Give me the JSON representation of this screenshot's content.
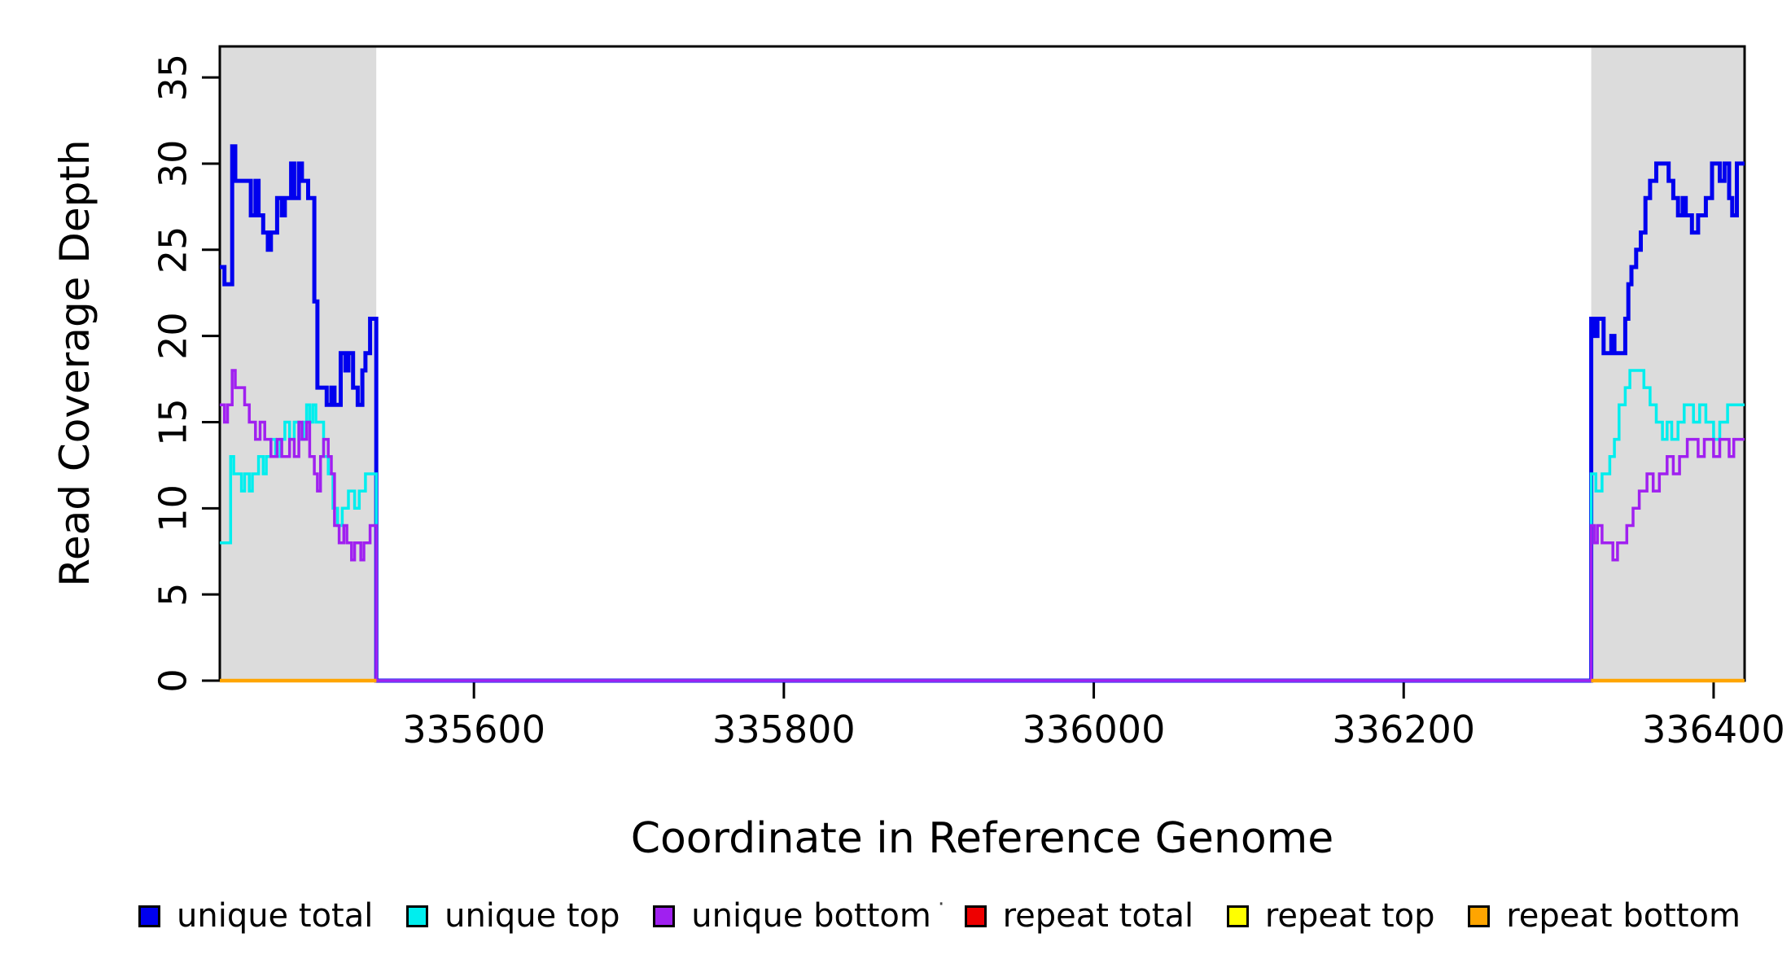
{
  "figure": {
    "background": "#ffffff",
    "plot_bg": "#ffffff",
    "box_color": "#000000"
  },
  "chart_data": {
    "type": "line",
    "step": "after",
    "title": "",
    "xlabel": "Coordinate in Reference Genome",
    "ylabel": "Read Coverage Depth",
    "xlim": [
      335436,
      336420
    ],
    "ylim": [
      0,
      36.8
    ],
    "xticks": [
      335600,
      335800,
      336000,
      336200,
      336400
    ],
    "yticks": [
      0,
      5,
      10,
      15,
      20,
      25,
      30,
      35
    ],
    "grid": false,
    "legend_position": "bottom",
    "shaded_regions": [
      {
        "name": "repeat-region-left",
        "x0": 335436,
        "x1": 335537,
        "color": "#DCDCDC"
      },
      {
        "name": "repeat-region-right",
        "x0": 336321,
        "x1": 336420,
        "color": "#DCDCDC"
      }
    ],
    "series": [
      {
        "name": "unique total",
        "color": "#0000EE",
        "width": 5,
        "segments": [
          [
            [
              335436,
              24
            ],
            [
              335439,
              23
            ],
            [
              335444,
              31
            ],
            [
              335446,
              29
            ],
            [
              335456,
              27
            ],
            [
              335459,
              29
            ],
            [
              335461,
              27
            ],
            [
              335464,
              26
            ],
            [
              335467,
              25
            ],
            [
              335469,
              26
            ],
            [
              335473,
              28
            ],
            [
              335476,
              27
            ],
            [
              335478,
              28
            ],
            [
              335482,
              30
            ],
            [
              335484,
              28
            ],
            [
              335487,
              30
            ],
            [
              335489,
              29
            ],
            [
              335493,
              28
            ],
            [
              335497,
              22
            ],
            [
              335499,
              17
            ],
            [
              335505,
              16
            ],
            [
              335508,
              17
            ],
            [
              335510,
              16
            ],
            [
              335514,
              19
            ],
            [
              335517,
              18
            ],
            [
              335519,
              19
            ],
            [
              335522,
              17
            ],
            [
              335525,
              16
            ],
            [
              335528,
              18
            ],
            [
              335530,
              19
            ],
            [
              335533,
              21
            ],
            [
              335537,
              0
            ],
            [
              336321,
              21
            ],
            [
              336323,
              20
            ],
            [
              336325,
              21
            ],
            [
              336329,
              19
            ],
            [
              336334,
              20
            ],
            [
              336336,
              19
            ],
            [
              336343,
              21
            ],
            [
              336345,
              23
            ],
            [
              336347,
              24
            ],
            [
              336350,
              25
            ],
            [
              336353,
              26
            ],
            [
              336356,
              28
            ],
            [
              336359,
              29
            ],
            [
              336363,
              30
            ],
            [
              336371,
              29
            ],
            [
              336374,
              28
            ],
            [
              336377,
              27
            ],
            [
              336380,
              28
            ],
            [
              336382,
              27
            ],
            [
              336386,
              26
            ],
            [
              336390,
              27
            ],
            [
              336395,
              28
            ],
            [
              336399,
              30
            ],
            [
              336404,
              29
            ],
            [
              336407,
              30
            ],
            [
              336410,
              28
            ],
            [
              336412,
              27
            ],
            [
              336415,
              30
            ],
            [
              336420,
              30
            ]
          ]
        ]
      },
      {
        "name": "unique top",
        "color": "#00EEEE",
        "width": 3.5,
        "segments": [
          [
            [
              335436,
              8
            ],
            [
              335443,
              13
            ],
            [
              335445,
              12
            ],
            [
              335450,
              11
            ],
            [
              335452,
              12
            ],
            [
              335455,
              11
            ],
            [
              335457,
              12
            ],
            [
              335461,
              13
            ],
            [
              335464,
              12
            ],
            [
              335466,
              13
            ],
            [
              335469,
              14
            ],
            [
              335472,
              13
            ],
            [
              335475,
              14
            ],
            [
              335478,
              15
            ],
            [
              335481,
              14
            ],
            [
              335484,
              15
            ],
            [
              335487,
              14
            ],
            [
              335490,
              15
            ],
            [
              335492,
              16
            ],
            [
              335494,
              15
            ],
            [
              335496,
              16
            ],
            [
              335498,
              15
            ],
            [
              335503,
              13
            ],
            [
              335506,
              12
            ],
            [
              335509,
              10
            ],
            [
              335512,
              9
            ],
            [
              335515,
              10
            ],
            [
              335519,
              11
            ],
            [
              335523,
              10
            ],
            [
              335526,
              11
            ],
            [
              335530,
              12
            ],
            [
              335537,
              0
            ],
            [
              336321,
              12
            ],
            [
              336324,
              11
            ],
            [
              336328,
              12
            ],
            [
              336333,
              13
            ],
            [
              336336,
              14
            ],
            [
              336339,
              16
            ],
            [
              336343,
              17
            ],
            [
              336346,
              18
            ],
            [
              336355,
              17
            ],
            [
              336359,
              16
            ],
            [
              336363,
              15
            ],
            [
              336367,
              14
            ],
            [
              336370,
              15
            ],
            [
              336373,
              14
            ],
            [
              336377,
              15
            ],
            [
              336381,
              16
            ],
            [
              336387,
              15
            ],
            [
              336391,
              16
            ],
            [
              336395,
              15
            ],
            [
              336400,
              14
            ],
            [
              336404,
              15
            ],
            [
              336409,
              16
            ],
            [
              336420,
              16
            ]
          ]
        ]
      },
      {
        "name": "unique bottom",
        "color": "#A020F0",
        "width": 3.5,
        "segments": [
          [
            [
              335436,
              16
            ],
            [
              335439,
              15
            ],
            [
              335441,
              16
            ],
            [
              335444,
              18
            ],
            [
              335446,
              17
            ],
            [
              335452,
              16
            ],
            [
              335455,
              15
            ],
            [
              335459,
              14
            ],
            [
              335462,
              15
            ],
            [
              335465,
              14
            ],
            [
              335469,
              13
            ],
            [
              335473,
              14
            ],
            [
              335476,
              13
            ],
            [
              335481,
              14
            ],
            [
              335484,
              13
            ],
            [
              335487,
              15
            ],
            [
              335489,
              14
            ],
            [
              335492,
              15
            ],
            [
              335494,
              13
            ],
            [
              335497,
              12
            ],
            [
              335499,
              11
            ],
            [
              335501,
              13
            ],
            [
              335503,
              14
            ],
            [
              335506,
              13
            ],
            [
              335508,
              12
            ],
            [
              335510,
              9
            ],
            [
              335513,
              8
            ],
            [
              335516,
              9
            ],
            [
              335518,
              8
            ],
            [
              335521,
              7
            ],
            [
              335523,
              8
            ],
            [
              335527,
              7
            ],
            [
              335529,
              8
            ],
            [
              335533,
              9
            ],
            [
              335537,
              0
            ],
            [
              336321,
              9
            ],
            [
              336323,
              8
            ],
            [
              336325,
              9
            ],
            [
              336328,
              8
            ],
            [
              336335,
              7
            ],
            [
              336338,
              8
            ],
            [
              336344,
              9
            ],
            [
              336348,
              10
            ],
            [
              336352,
              11
            ],
            [
              336357,
              12
            ],
            [
              336361,
              11
            ],
            [
              336365,
              12
            ],
            [
              336370,
              13
            ],
            [
              336374,
              12
            ],
            [
              336378,
              13
            ],
            [
              336383,
              14
            ],
            [
              336390,
              13
            ],
            [
              336394,
              14
            ],
            [
              336400,
              13
            ],
            [
              336404,
              14
            ],
            [
              336410,
              13
            ],
            [
              336413,
              14
            ],
            [
              336420,
              14
            ]
          ]
        ]
      },
      {
        "name": "repeat total",
        "color": "#EE0000",
        "width": 4,
        "segments": [
          [
            [
              335436,
              0
            ],
            [
              335537,
              0
            ]
          ],
          [
            [
              336321,
              0
            ],
            [
              336420,
              0
            ]
          ]
        ]
      },
      {
        "name": "repeat top",
        "color": "#FFFF00",
        "width": 4,
        "segments": [
          [
            [
              335436,
              0
            ],
            [
              335537,
              0
            ]
          ],
          [
            [
              336321,
              0
            ],
            [
              336420,
              0
            ]
          ]
        ]
      },
      {
        "name": "repeat bottom",
        "color": "#FFA500",
        "width": 4.5,
        "segments": [
          [
            [
              335436,
              0
            ],
            [
              335537,
              0
            ]
          ],
          [
            [
              336321,
              0
            ],
            [
              336420,
              0
            ]
          ]
        ]
      }
    ]
  },
  "legend": {
    "stray_mark": "·",
    "items": [
      {
        "label": "unique total",
        "color": "#0000EE"
      },
      {
        "label": "unique top",
        "color": "#00EEEE"
      },
      {
        "label": "unique bottom",
        "color": "#A020F0"
      },
      {
        "label": "repeat total",
        "color": "#EE0000"
      },
      {
        "label": "repeat top",
        "color": "#FFFF00"
      },
      {
        "label": "repeat bottom",
        "color": "#FFA500"
      }
    ]
  }
}
